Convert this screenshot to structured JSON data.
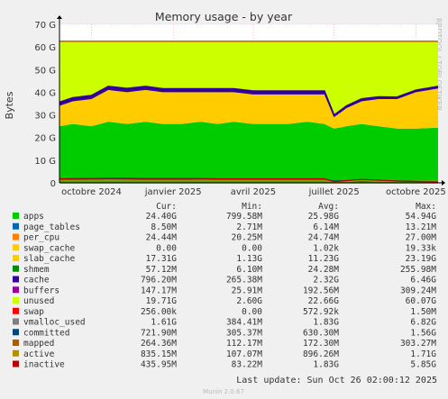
{
  "chart_data": {
    "type": "area",
    "title": "Memory usage - by year",
    "ylabel": "Bytes",
    "side_label": "RRDTOOL / TOBI OETIKER",
    "footer": "Munin 2.0.67",
    "last_update": "Last update: Sun Oct 26 02:00:12 2025",
    "ylim": [
      0,
      70
    ],
    "y_unit": "G",
    "y_ticks": [
      {
        "value": 0,
        "label": "0"
      },
      {
        "value": 10,
        "label": "10 G"
      },
      {
        "value": 20,
        "label": "20 G"
      },
      {
        "value": 30,
        "label": "30 G"
      },
      {
        "value": 40,
        "label": "40 G"
      },
      {
        "value": 50,
        "label": "50 G"
      },
      {
        "value": 60,
        "label": "60 G"
      },
      {
        "value": 70,
        "label": "70 G"
      }
    ],
    "x_range": [
      "2024-08-26",
      "2025-10-26"
    ],
    "x_ticks": [
      {
        "date": "2024-10-01",
        "label": "octobre 2024"
      },
      {
        "date": "2025-01-01",
        "label": "janvier 2025"
      },
      {
        "date": "2025-04-01",
        "label": "avril 2025"
      },
      {
        "date": "2025-07-01",
        "label": "juillet 2025"
      },
      {
        "date": "2025-10-01",
        "label": "octobre 2025"
      }
    ],
    "stack_order": [
      "apps",
      "page_tables",
      "swap_cache",
      "slab_cache",
      "cache",
      "buffers",
      "unused"
    ],
    "profile": {
      "x": [
        "2024-08-26",
        "2024-09-10",
        "2024-10-01",
        "2024-10-20",
        "2024-11-10",
        "2024-12-01",
        "2024-12-20",
        "2025-01-10",
        "2025-02-01",
        "2025-02-20",
        "2025-03-10",
        "2025-04-01",
        "2025-04-20",
        "2025-05-10",
        "2025-06-01",
        "2025-06-20",
        "2025-07-01",
        "2025-07-15",
        "2025-08-01",
        "2025-08-20",
        "2025-09-10",
        "2025-10-01",
        "2025-10-26"
      ],
      "apps": [
        25,
        26,
        25,
        27,
        26,
        27,
        26,
        26,
        27,
        26,
        27,
        26,
        26,
        26,
        27,
        26,
        24,
        25,
        26,
        25,
        24,
        24,
        24.4
      ],
      "slab_cache": [
        9,
        10,
        12,
        14,
        14,
        14,
        14,
        14,
        13,
        14,
        13,
        13,
        13,
        13,
        12,
        13,
        5,
        8,
        10,
        12,
        13,
        16,
        17.3
      ],
      "cache": [
        1.5,
        1.5,
        1.5,
        1.5,
        1.6,
        1.5,
        1.5,
        1.5,
        1.5,
        1.5,
        1.5,
        1.5,
        1.5,
        1.5,
        1.5,
        1.5,
        0.8,
        0.9,
        1.0,
        0.9,
        0.8,
        0.8,
        0.8
      ],
      "total": [
        62.5,
        62.5,
        62.5,
        62.5,
        62.5,
        62.5,
        62.5,
        62.5,
        62.5,
        62.5,
        62.5,
        62.5,
        62.5,
        62.5,
        62.5,
        62.5,
        62.5,
        62.5,
        62.5,
        62.5,
        62.5,
        62.5,
        62.5
      ],
      "swap": [
        0,
        0,
        0,
        0,
        0,
        0,
        0,
        0,
        0,
        0,
        0,
        0,
        0,
        0,
        0,
        0,
        0,
        0,
        0,
        0,
        0,
        0,
        0
      ],
      "committed": [
        1.5,
        1.6,
        1.6,
        1.8,
        1.7,
        1.6,
        1.6,
        1.6,
        1.7,
        1.6,
        1.6,
        1.6,
        1.6,
        1.6,
        1.6,
        1.6,
        0.8,
        1.0,
        0.6,
        0.9,
        0.8,
        0.8,
        0.7
      ],
      "inactive": [
        1.8,
        1.9,
        1.9,
        2.0,
        2.0,
        1.9,
        1.9,
        1.9,
        1.9,
        1.8,
        1.8,
        1.8,
        1.8,
        1.8,
        1.8,
        1.8,
        0.5,
        1.0,
        1.5,
        1.2,
        0.8,
        0.6,
        0.4
      ],
      "active": [
        1.1,
        1.1,
        1.2,
        1.2,
        1.1,
        1.1,
        1.1,
        1.1,
        1.1,
        1.1,
        1.1,
        1.1,
        1.1,
        1.1,
        1.1,
        1.1,
        0.4,
        0.6,
        0.9,
        0.7,
        0.6,
        0.8,
        0.8
      ]
    },
    "legend_header": {
      "cur": "Cur:",
      "min": "Min:",
      "avg": "Avg:",
      "max": "Max:"
    },
    "series": [
      {
        "name": "apps",
        "color": "#00cc00",
        "cur": "24.40G",
        "min": "799.58M",
        "avg": "25.98G",
        "max": "54.94G"
      },
      {
        "name": "page_tables",
        "color": "#0066b3",
        "cur": "8.50M",
        "min": "2.71M",
        "avg": "6.14M",
        "max": "13.21M"
      },
      {
        "name": "per_cpu",
        "color": "#ff8000",
        "cur": "24.44M",
        "min": "20.25M",
        "avg": "24.74M",
        "max": "27.00M"
      },
      {
        "name": "swap_cache",
        "color": "#ffcc00",
        "cur": "0.00",
        "min": "0.00",
        "avg": "1.02k",
        "max": "19.33k"
      },
      {
        "name": "slab_cache",
        "color": "#ffcc00",
        "cur": "17.31G",
        "min": "1.13G",
        "avg": "11.23G",
        "max": "23.19G"
      },
      {
        "name": "shmem",
        "color": "#008f00",
        "cur": "57.12M",
        "min": "6.10M",
        "avg": "24.28M",
        "max": "255.98M"
      },
      {
        "name": "cache",
        "color": "#330099",
        "cur": "796.20M",
        "min": "265.38M",
        "avg": "2.32G",
        "max": "6.46G"
      },
      {
        "name": "buffers",
        "color": "#990099",
        "cur": "147.17M",
        "min": "25.91M",
        "avg": "192.56M",
        "max": "309.24M"
      },
      {
        "name": "unused",
        "color": "#ccff00",
        "cur": "19.71G",
        "min": "2.60G",
        "avg": "22.66G",
        "max": "60.07G"
      },
      {
        "name": "swap",
        "color": "#ff0000",
        "cur": "256.00k",
        "min": "0.00",
        "avg": "572.92k",
        "max": "1.50M"
      },
      {
        "name": "vmalloc_used",
        "color": "#808080",
        "cur": "1.61G",
        "min": "384.41M",
        "avg": "1.83G",
        "max": "6.82G"
      },
      {
        "name": "committed",
        "color": "#00487d",
        "cur": "721.90M",
        "min": "305.37M",
        "avg": "630.30M",
        "max": "1.56G"
      },
      {
        "name": "mapped",
        "color": "#b35a00",
        "cur": "264.36M",
        "min": "112.17M",
        "avg": "172.30M",
        "max": "303.27M"
      },
      {
        "name": "active",
        "color": "#b38f00",
        "cur": "835.15M",
        "min": "107.07M",
        "avg": "896.26M",
        "max": "1.71G"
      },
      {
        "name": "inactive",
        "color": "#bb0000",
        "cur": "435.95M",
        "min": "83.22M",
        "avg": "1.83G",
        "max": "5.85G"
      }
    ]
  }
}
